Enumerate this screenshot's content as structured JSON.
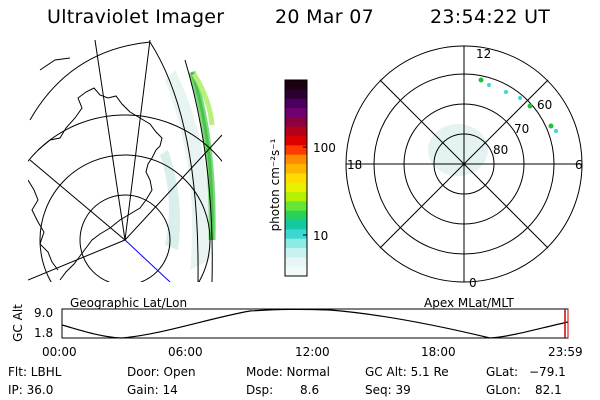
{
  "header": {
    "title": "Ultraviolet Imager",
    "date": "20 Mar 07",
    "time": "23:54:22 UT"
  },
  "colorbar": {
    "unit_label": "photon cm⁻²s⁻¹",
    "ticks": [
      "100",
      "10"
    ],
    "colors": [
      "#1a0010",
      "#2a0030",
      "#4a0060",
      "#700070",
      "#8c0040",
      "#b4001a",
      "#dc0000",
      "#ff3a00",
      "#ff8c00",
      "#ffb400",
      "#ffdc00",
      "#e8f000",
      "#b4f000",
      "#64e632",
      "#28d25a",
      "#14c8a0",
      "#3cd7d2",
      "#8ceae6",
      "#c8f2f0",
      "#e6f7f5",
      "#f2faf9"
    ]
  },
  "left_panel": {
    "label": "Geographic Lat/Lon"
  },
  "right_panel": {
    "label": "Apex MLat/MLT",
    "mlt_labels": {
      "top": "12",
      "left": "18",
      "right": "6",
      "bottom": "0"
    },
    "lat_labels": [
      "60",
      "70",
      "80"
    ]
  },
  "timeline": {
    "ylabel": "GC Alt",
    "ymax": "9.0",
    "ymin": "1.8",
    "ticks": [
      "00:00",
      "06:00",
      "12:00",
      "18:00",
      "23:59"
    ]
  },
  "info": {
    "flt": "Flt: LBHL",
    "ip": "IP: 36.0",
    "door": "Door: Open",
    "gain": "Gain: 14",
    "mode": "Mode: Normal",
    "dsp_label": "Dsp:",
    "dsp_value": "8.6",
    "gcalt": "GC Alt: 5.1 Re",
    "seq": "Seq: 39",
    "glat_label": "GLat:",
    "glat_value": "−79.1",
    "glon_label": "GLon:",
    "glon_value": "82.1"
  }
}
